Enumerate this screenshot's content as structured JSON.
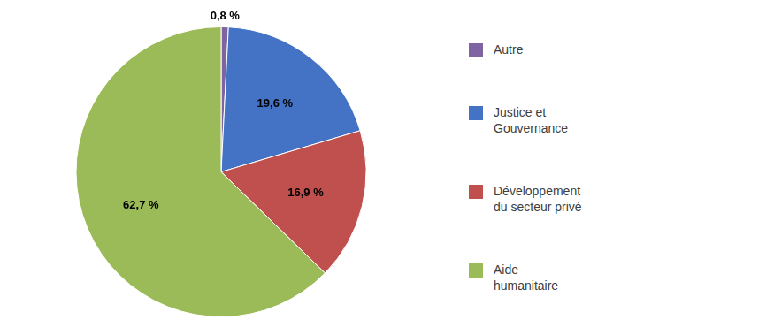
{
  "chart_data": {
    "type": "pie",
    "categories": [
      "Autre",
      "Justice et\nGouvernance",
      "Développement\ndu secteur privé",
      "Aide\nhumanitaire"
    ],
    "values": [
      0.8,
      19.6,
      16.9,
      62.7
    ],
    "value_labels": [
      "0,8 %",
      "19,6 %",
      "16,9 %",
      "62,7 %"
    ],
    "colors": [
      "#8064A2",
      "#4472C4",
      "#C0504D",
      "#9BBB59"
    ],
    "legend": "right",
    "data_labels": true
  }
}
